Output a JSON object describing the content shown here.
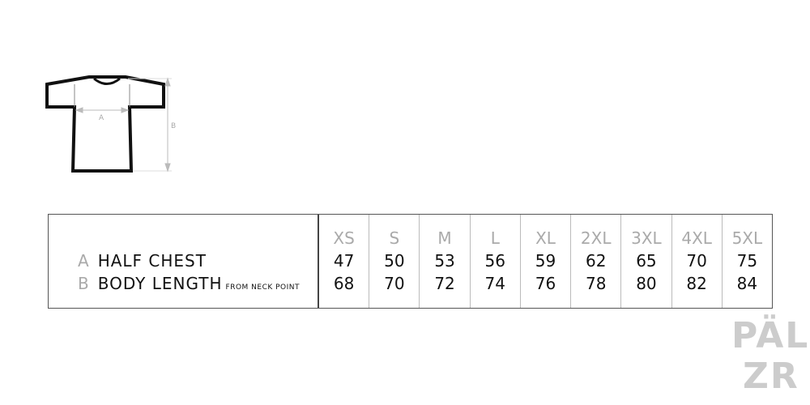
{
  "diagram": {
    "label_a": "A",
    "label_b": "B"
  },
  "rows": [
    {
      "letter": "A",
      "label": "HALF CHEST",
      "note": ""
    },
    {
      "letter": "B",
      "label": "BODY LENGTH",
      "note": "FROM NECK POINT"
    }
  ],
  "sizes": [
    {
      "size": "XS",
      "a": "47",
      "b": "68"
    },
    {
      "size": "S",
      "a": "50",
      "b": "70"
    },
    {
      "size": "M",
      "a": "53",
      "b": "72"
    },
    {
      "size": "L",
      "a": "56",
      "b": "74"
    },
    {
      "size": "XL",
      "a": "59",
      "b": "76"
    },
    {
      "size": "2XL",
      "a": "62",
      "b": "78"
    },
    {
      "size": "3XL",
      "a": "65",
      "b": "80"
    },
    {
      "size": "4XL",
      "a": "70",
      "b": "82"
    },
    {
      "size": "5XL",
      "a": "75",
      "b": "84"
    }
  ],
  "logo": {
    "line1": "PÄL",
    "line2": "ZR"
  }
}
